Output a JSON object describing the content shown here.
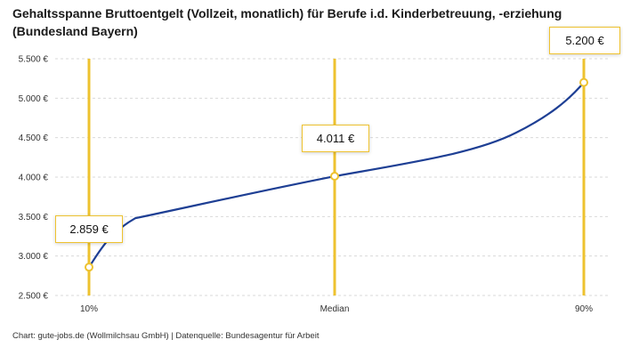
{
  "chart_data": {
    "type": "line",
    "title": "Gehaltsspanne Bruttoentgelt (Vollzeit, monatlich) für Berufe i.d. Kinderbetreuung, -erziehung (Bundesland Bayern)",
    "categories": [
      "10%",
      "Median",
      "90%"
    ],
    "values": [
      2859,
      4011,
      5200
    ],
    "point_labels": [
      "2.859 €",
      "4.011 €",
      "5.200 €"
    ],
    "ylim": [
      2500,
      5500
    ],
    "ytick_step": 500,
    "ytick_labels": [
      "2.500 €",
      "3.000 €",
      "3.500 €",
      "4.000 €",
      "4.500 €",
      "5.000 €",
      "5.500 €"
    ],
    "grid": "horizontal-dashed",
    "legend": "none",
    "xlabel": "",
    "ylabel": "",
    "colors": {
      "line": "#1e3f94",
      "accent": "#eec22f",
      "gridline": "#d9d9d9",
      "axis_text": "#333333"
    }
  },
  "footer": {
    "credit": "Chart: gute-jobs.de (Wollmilchsau GmbH) | Datenquelle: Bundesagentur für Arbeit"
  }
}
